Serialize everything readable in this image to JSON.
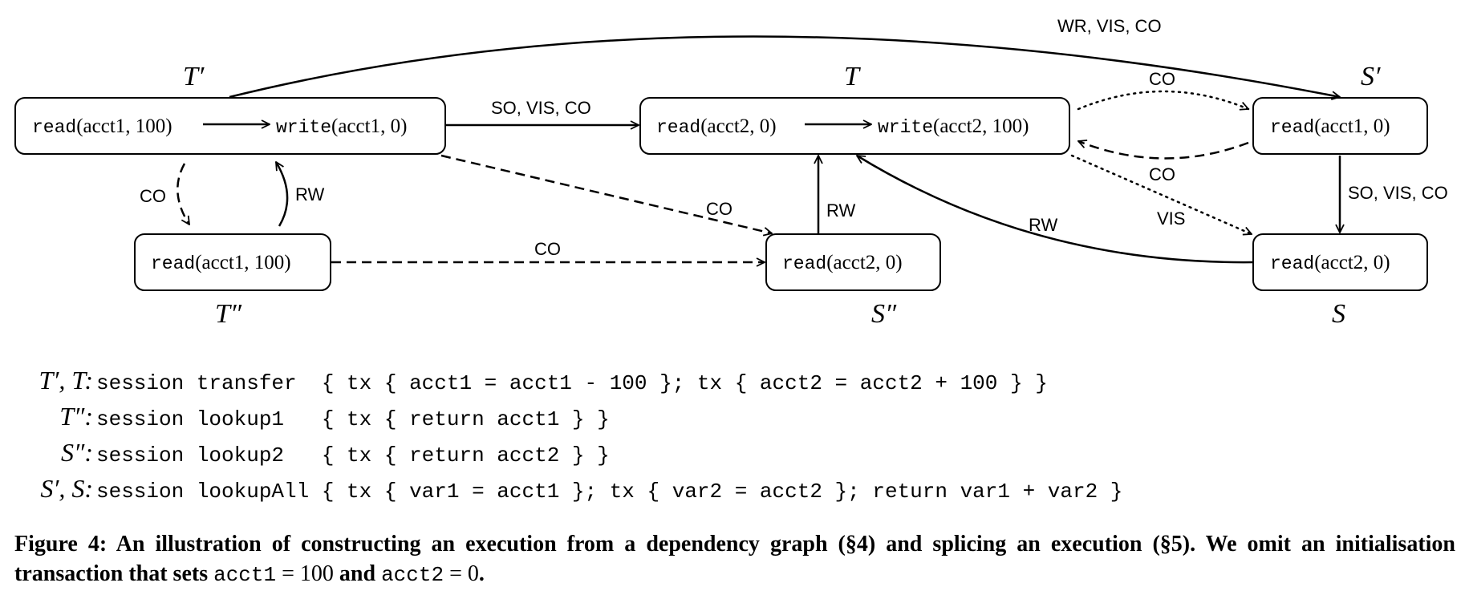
{
  "nodes": {
    "tprime_read": {
      "op": "read",
      "args": "(acct1, 100)"
    },
    "tprime_write": {
      "op": "write",
      "args": "(acct1, 0)"
    },
    "t_read": {
      "op": "read",
      "args": "(acct2, 0)"
    },
    "t_write": {
      "op": "write",
      "args": "(acct2, 100)"
    },
    "sprime_read": {
      "op": "read",
      "args": "(acct1, 0)"
    },
    "tdprime_read": {
      "op": "read",
      "args": "(acct1, 100)"
    },
    "sdprime_read": {
      "op": "read",
      "args": "(acct2, 0)"
    },
    "s_read": {
      "op": "read",
      "args": "(acct2, 0)"
    }
  },
  "transaction_labels": {
    "tprime": "T′",
    "t": "T",
    "sprime": "S′",
    "tdprime": "T″",
    "sdprime": "S″",
    "s": "S"
  },
  "edge_labels": {
    "wr_vis_co": "WR, VIS, CO",
    "so_vis_co_top": "SO, VIS, CO",
    "co_t_sprime": "CO",
    "co_sprime_t": "CO",
    "vis_t_s": "VIS",
    "so_vis_co_right": "SO, VIS, CO",
    "co_tprime_tdprime": "CO",
    "rw_tdprime_tprime": "RW",
    "co_tprime_sdprime": "CO",
    "co_tdprime_sdprime": "CO",
    "rw_sdprime_t": "RW",
    "rw_s_t": "RW"
  },
  "code": [
    {
      "name": "T′, T:",
      "body": "session transfer  { tx { acct1 = acct1 - 100 }; tx { acct2 = acct2 + 100 } }"
    },
    {
      "name": "T″:",
      "body": "session lookup1   { tx { return acct1 } }"
    },
    {
      "name": "S″:",
      "body": "session lookup2   { tx { return acct2 } }"
    },
    {
      "name": "S′, S:",
      "body": "session lookupAll { tx { var1 = acct1 }; tx { var2 = acct2 }; return var1 + var2 }"
    }
  ],
  "caption": {
    "lead": "Figure 4: An illustration of constructing an execution from a dependency graph (§4) and splicing an execution (§5). We omit an initialisation transaction that sets ",
    "var1": "acct1",
    "eq1": " = 100",
    "and": " and ",
    "var2": "acct2",
    "eq2": " = 0",
    "end": "."
  }
}
